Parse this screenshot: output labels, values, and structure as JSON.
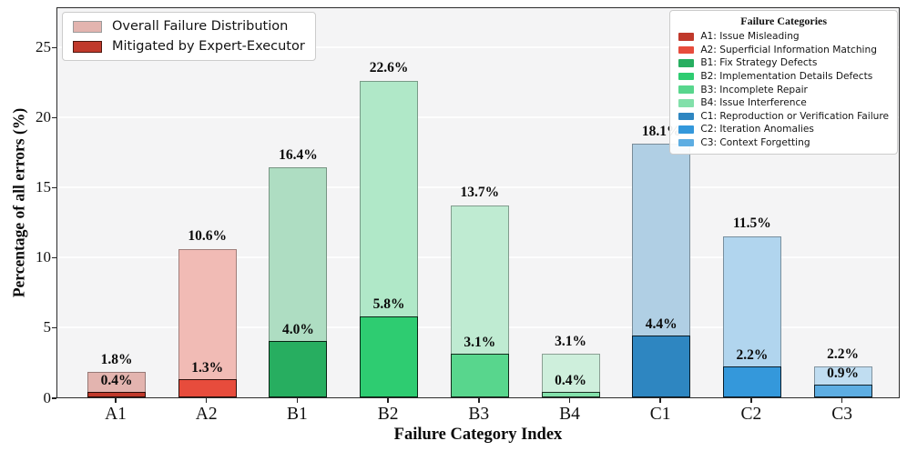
{
  "figure": {
    "background": "#ffffff",
    "plot_background": "#f4f4f5",
    "grid_color": "#fdfdfd"
  },
  "axes": {
    "x_title": "Failure Category Index",
    "y_title": "Percentage of all errors (%)"
  },
  "legend_series": {
    "items": [
      {
        "label": "Overall Failure Distribution",
        "swatch": "#e3b4af",
        "swatch_border": "#9b9b9b"
      },
      {
        "label": "Mitigated by Expert-Executor",
        "swatch": "#c0392b",
        "swatch_border": "#4d170f"
      }
    ]
  },
  "legend_categories": {
    "title": "Failure Categories",
    "items": [
      {
        "label": "A1: Issue Misleading",
        "swatch": "#c0392b"
      },
      {
        "label": "A2: Superficial Information Matching",
        "swatch": "#e74c3c"
      },
      {
        "label": "B1: Fix Strategy Defects",
        "swatch": "#27ae60"
      },
      {
        "label": "B2: Implementation Details Defects",
        "swatch": "#2ecc71"
      },
      {
        "label": "B3: Incomplete Repair",
        "swatch": "#58d68d"
      },
      {
        "label": "B4: Issue Interference",
        "swatch": "#82e0aa"
      },
      {
        "label": "C1: Reproduction or Verification Failure",
        "swatch": "#2e86c1"
      },
      {
        "label": "C2: Iteration Anomalies",
        "swatch": "#3498db"
      },
      {
        "label": "C3: Context Forgetting",
        "swatch": "#5dade2"
      }
    ]
  },
  "chart_data": {
    "type": "bar",
    "title": "",
    "xlabel": "Failure Category Index",
    "ylabel": "Percentage of all errors (%)",
    "ylim": [
      0,
      27.9
    ],
    "y_ticks": [
      0,
      5,
      10,
      15,
      20,
      25
    ],
    "grid": "horizontal",
    "legend_positions": [
      "upper left",
      "upper right"
    ],
    "categories": [
      "A1",
      "A2",
      "B1",
      "B2",
      "B3",
      "B4",
      "C1",
      "C2",
      "C3"
    ],
    "series": [
      {
        "name": "Overall Failure Distribution",
        "values": [
          1.8,
          10.6,
          16.4,
          22.6,
          13.7,
          3.1,
          18.1,
          11.5,
          2.2
        ]
      },
      {
        "name": "Mitigated by Expert-Executor",
        "values": [
          0.4,
          1.3,
          4.0,
          5.8,
          3.1,
          0.4,
          4.4,
          2.2,
          0.9
        ]
      }
    ],
    "colors_solid": [
      "#c0392b",
      "#e74c3c",
      "#27ae60",
      "#2ecc71",
      "#58d68d",
      "#82e0aa",
      "#2e86c1",
      "#3498db",
      "#5dade2"
    ],
    "colors_light": [
      "#e3b4af",
      "#f1bbb5",
      "#aeddc2",
      "#b0e8c8",
      "#bfebd2",
      "#ceefdc",
      "#b0cfe4",
      "#b1d5ee",
      "#c0ddf1"
    ]
  }
}
